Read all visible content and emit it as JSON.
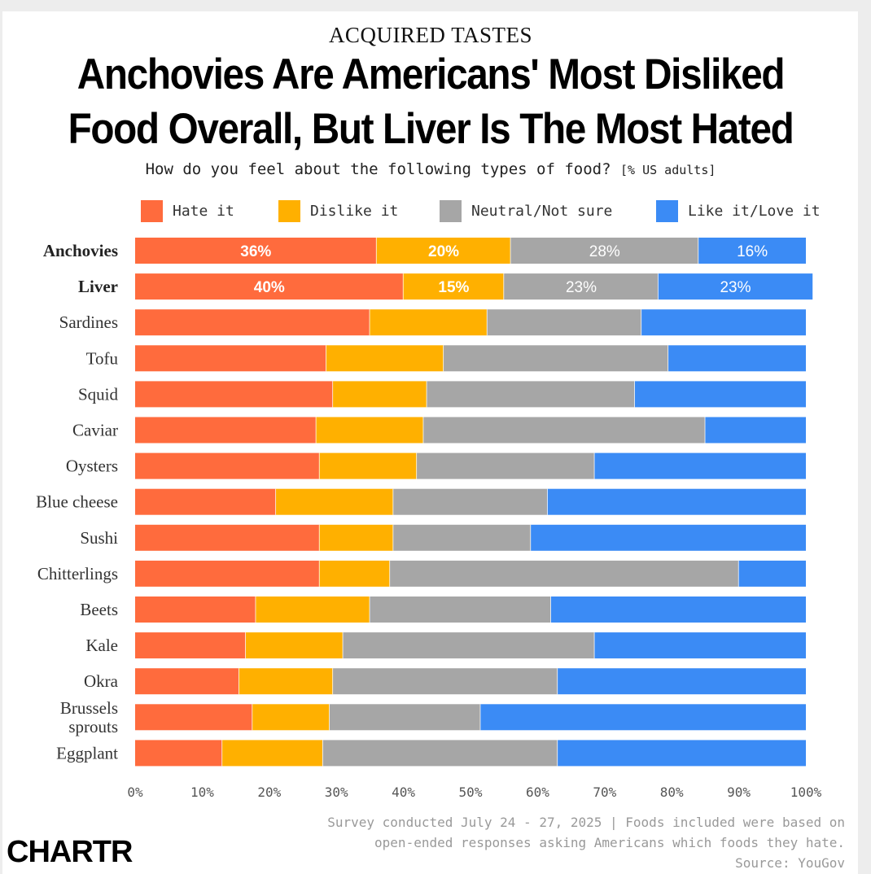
{
  "header": {
    "kicker": "ACQUIRED TASTES",
    "title_line1": "Anchovies Are Americans' Most Disliked",
    "title_line2": "Food Overall, But Liver Is The Most Hated",
    "subtitle": "How do you feel about the following types of food?",
    "subtitle_unit": "[% US adults]"
  },
  "footer": {
    "note_line1": "Survey conducted July 24 - 27, 2025 | Foods included were based on",
    "note_line2": "open-ended responses asking Americans which foods they hate.",
    "note_line3": "Source: YouGov",
    "logo": "CHARTR"
  },
  "colors": {
    "hate": "#ff6b3d",
    "dislike": "#ffb000",
    "neutral": "#a6a6a6",
    "like": "#3b8bf5"
  },
  "chart_data": {
    "type": "bar",
    "orientation": "horizontal",
    "stacked": true,
    "xlim": [
      0,
      100
    ],
    "x_ticks": [
      0,
      10,
      20,
      30,
      40,
      50,
      60,
      70,
      80,
      90,
      100
    ],
    "x_tick_labels": [
      "0%",
      "10%",
      "20%",
      "30%",
      "40%",
      "50%",
      "60%",
      "70%",
      "80%",
      "90%",
      "100%"
    ],
    "legend_position": "top",
    "categories": [
      "Anchovies",
      "Liver",
      "Sardines",
      "Tofu",
      "Squid",
      "Caviar",
      "Oysters",
      "Blue cheese",
      "Sushi",
      "Chitterlings",
      "Beets",
      "Kale",
      "Okra",
      "Brussels sprouts",
      "Eggplant"
    ],
    "category_lines": [
      [
        "Anchovies"
      ],
      [
        "Liver"
      ],
      [
        "Sardines"
      ],
      [
        "Tofu"
      ],
      [
        "Squid"
      ],
      [
        "Caviar"
      ],
      [
        "Oysters"
      ],
      [
        "Blue cheese"
      ],
      [
        "Sushi"
      ],
      [
        "Chitterlings"
      ],
      [
        "Beets"
      ],
      [
        "Kale"
      ],
      [
        "Okra"
      ],
      [
        "Brussels",
        "sprouts"
      ],
      [
        "Eggplant"
      ]
    ],
    "bold_categories": [
      "Anchovies",
      "Liver"
    ],
    "series": [
      {
        "name": "Hate it",
        "color_key": "hate",
        "values": [
          36,
          40,
          35,
          28.5,
          29.5,
          27,
          27.5,
          21,
          27.5,
          27.5,
          18,
          16.5,
          15.5,
          17.5,
          13
        ],
        "labels": [
          "36%",
          "40%",
          "",
          "",
          "",
          "",
          "",
          "",
          "",
          "",
          "",
          "",
          "",
          "",
          ""
        ]
      },
      {
        "name": "Dislike it",
        "color_key": "dislike",
        "values": [
          20,
          15,
          17.5,
          17.5,
          14,
          16,
          14.5,
          17.5,
          11,
          10.5,
          17,
          14.5,
          14,
          11.5,
          15
        ],
        "labels": [
          "20%",
          "15%",
          "",
          "",
          "",
          "",
          "",
          "",
          "",
          "",
          "",
          "",
          "",
          "",
          ""
        ]
      },
      {
        "name": "Neutral/Not sure",
        "color_key": "neutral",
        "values": [
          28,
          23,
          23,
          33.5,
          31,
          42,
          26.5,
          23,
          20.5,
          52,
          27,
          37.5,
          33.5,
          22.5,
          35
        ],
        "labels": [
          "28%",
          "23%",
          "",
          "",
          "",
          "",
          "",
          "",
          "",
          "",
          "",
          "",
          "",
          "",
          ""
        ]
      },
      {
        "name": "Like it/Love it",
        "color_key": "like",
        "values": [
          16,
          23,
          24.5,
          20.5,
          25.5,
          15,
          31.5,
          38.5,
          41,
          10,
          38,
          31.5,
          37,
          48.5,
          37
        ],
        "labels": [
          "16%",
          "23%",
          "",
          "",
          "",
          "",
          "",
          "",
          "",
          "",
          "",
          "",
          "",
          "",
          ""
        ]
      }
    ]
  }
}
